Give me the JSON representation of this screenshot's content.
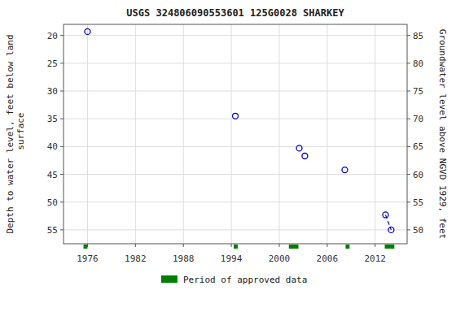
{
  "chart_data": {
    "type": "scatter",
    "title": "USGS 324806090553601 125G0028  SHARKEY",
    "y_label": "Depth to water level, feet below land\n surface",
    "y2_label": "Groundwater level above NGVD 1929, feet",
    "xlim": [
      1973,
      2016
    ],
    "ylim": [
      57.5,
      18
    ],
    "y2lim": [
      47.5,
      87
    ],
    "xticks": [
      1976,
      1982,
      1988,
      1994,
      2000,
      2006,
      2012
    ],
    "yticks": [
      20,
      25,
      30,
      35,
      40,
      45,
      50,
      55
    ],
    "y2ticks": [
      85,
      80,
      75,
      70,
      65,
      60,
      55,
      50
    ],
    "grid": true,
    "legend": "bottom",
    "series": [
      {
        "type": "scatter",
        "marker": "open-circle",
        "color": "#0000cc",
        "x": [
          1976.0,
          1994.5,
          2002.5,
          2003.2,
          2008.2,
          2013.3,
          2014.0
        ],
        "values": [
          19.3,
          34.5,
          40.3,
          41.7,
          44.2,
          52.3,
          55.0
        ]
      },
      {
        "type": "line",
        "line_style": "dashed",
        "color": "#0000cc",
        "x": [
          2013.3,
          2014.0
        ],
        "values": [
          52.3,
          55.0
        ]
      },
      {
        "type": "span",
        "name": "Period of approved data",
        "color": "#008000",
        "x": [
          1975.5,
          1994.3,
          2001.2,
          2008.3,
          2013.2
        ],
        "widths": [
          0.5,
          0.5,
          1.2,
          0.5,
          1.2
        ]
      }
    ]
  }
}
